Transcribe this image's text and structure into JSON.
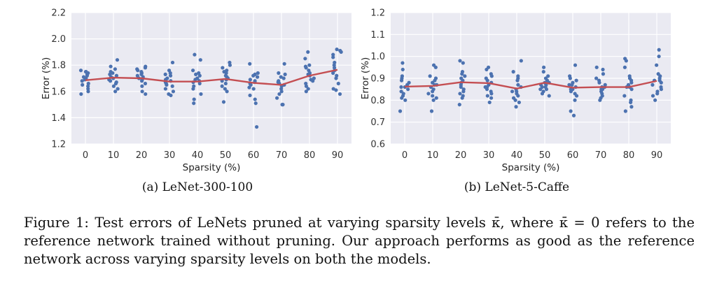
{
  "chart_data": [
    {
      "type": "scatter",
      "subcaption": "(a) LeNet-300-100",
      "xlabel": "Sparsity (%)",
      "ylabel": "Error (%)",
      "categories": [
        "0",
        "10",
        "20",
        "30",
        "40",
        "50",
        "60",
        "70",
        "80",
        "90"
      ],
      "ylim": [
        1.2,
        2.2
      ],
      "yticks": [
        "1.2",
        "1.4",
        "1.6",
        "1.8",
        "2.0",
        "2.2"
      ],
      "grid": true,
      "colors": {
        "points": "#4c72b0",
        "line": "#c44e52",
        "background": "#eaeaf2"
      },
      "points": [
        [
          1.76,
          1.75,
          1.74,
          1.73,
          1.72,
          1.7,
          1.68,
          1.66,
          1.64,
          1.62,
          1.6,
          1.58,
          1.75,
          1.71,
          1.69,
          1.65
        ],
        [
          1.84,
          1.79,
          1.77,
          1.75,
          1.73,
          1.71,
          1.7,
          1.68,
          1.66,
          1.64,
          1.62,
          1.6,
          1.74,
          1.69,
          1.72,
          1.67
        ],
        [
          1.79,
          1.78,
          1.77,
          1.75,
          1.73,
          1.72,
          1.7,
          1.68,
          1.66,
          1.64,
          1.6,
          1.58,
          1.74,
          1.69,
          1.76,
          1.71
        ],
        [
          1.82,
          1.76,
          1.74,
          1.72,
          1.7,
          1.68,
          1.66,
          1.64,
          1.62,
          1.6,
          1.58,
          1.57,
          1.73,
          1.67,
          1.69,
          1.65
        ],
        [
          1.88,
          1.84,
          1.76,
          1.74,
          1.72,
          1.7,
          1.68,
          1.66,
          1.64,
          1.62,
          1.58,
          1.54,
          1.51,
          1.73,
          1.69,
          1.67
        ],
        [
          1.82,
          1.8,
          1.78,
          1.76,
          1.74,
          1.72,
          1.7,
          1.68,
          1.66,
          1.64,
          1.62,
          1.6,
          1.52,
          1.75,
          1.71,
          1.69
        ],
        [
          1.81,
          1.74,
          1.73,
          1.71,
          1.69,
          1.67,
          1.65,
          1.63,
          1.62,
          1.57,
          1.54,
          1.51,
          1.33,
          1.72,
          1.68,
          1.66
        ],
        [
          1.81,
          1.74,
          1.73,
          1.7,
          1.68,
          1.66,
          1.64,
          1.62,
          1.6,
          1.58,
          1.55,
          1.5,
          1.5,
          1.71,
          1.67,
          1.65
        ],
        [
          1.9,
          1.85,
          1.8,
          1.78,
          1.76,
          1.74,
          1.72,
          1.7,
          1.68,
          1.66,
          1.64,
          1.62,
          1.6,
          1.73,
          1.69,
          1.79
        ],
        [
          1.92,
          1.91,
          1.9,
          1.88,
          1.86,
          1.82,
          1.78,
          1.76,
          1.74,
          1.72,
          1.7,
          1.66,
          1.62,
          1.61,
          1.58,
          1.8
        ]
      ],
      "mean": [
        1.685,
        1.705,
        1.7,
        1.675,
        1.675,
        1.695,
        1.665,
        1.65,
        1.72,
        1.765
      ]
    },
    {
      "type": "scatter",
      "subcaption": "(b) LeNet-5-Caffe",
      "xlabel": "Sparsity (%)",
      "ylabel": "Error (%)",
      "categories": [
        "0",
        "10",
        "20",
        "30",
        "40",
        "50",
        "60",
        "70",
        "80",
        "90"
      ],
      "ylim": [
        0.6,
        1.2
      ],
      "yticks": [
        "0.6",
        "0.7",
        "0.8",
        "0.9",
        "1.0",
        "1.1",
        "1.2"
      ],
      "grid": true,
      "colors": {
        "points": "#4c72b0",
        "line": "#c44e52",
        "background": "#eaeaf2"
      },
      "points": [
        [
          0.97,
          0.94,
          0.91,
          0.9,
          0.89,
          0.88,
          0.87,
          0.86,
          0.85,
          0.84,
          0.83,
          0.82,
          0.81,
          0.8,
          0.75,
          0.86
        ],
        [
          0.96,
          0.95,
          0.91,
          0.9,
          0.89,
          0.88,
          0.87,
          0.86,
          0.85,
          0.84,
          0.83,
          0.82,
          0.81,
          0.8,
          0.75,
          0.87
        ],
        [
          0.98,
          0.97,
          0.93,
          0.92,
          0.91,
          0.9,
          0.89,
          0.88,
          0.87,
          0.86,
          0.85,
          0.84,
          0.83,
          0.82,
          0.81,
          0.78
        ],
        [
          0.95,
          0.94,
          0.92,
          0.9,
          0.89,
          0.88,
          0.87,
          0.86,
          0.85,
          0.84,
          0.83,
          0.82,
          0.81,
          0.79,
          0.91,
          0.86
        ],
        [
          0.98,
          0.93,
          0.91,
          0.9,
          0.89,
          0.87,
          0.85,
          0.84,
          0.83,
          0.82,
          0.81,
          0.8,
          0.79,
          0.77,
          0.86,
          0.84
        ],
        [
          0.95,
          0.93,
          0.91,
          0.9,
          0.89,
          0.88,
          0.87,
          0.86,
          0.85,
          0.84,
          0.83,
          0.82,
          0.88,
          0.87,
          0.86,
          0.85
        ],
        [
          0.96,
          0.91,
          0.9,
          0.89,
          0.88,
          0.87,
          0.86,
          0.85,
          0.84,
          0.83,
          0.82,
          0.8,
          0.75,
          0.73,
          0.87,
          0.85
        ],
        [
          0.95,
          0.94,
          0.92,
          0.9,
          0.89,
          0.88,
          0.87,
          0.86,
          0.85,
          0.84,
          0.83,
          0.82,
          0.81,
          0.8,
          0.86,
          0.85
        ],
        [
          0.99,
          0.98,
          0.95,
          0.91,
          0.9,
          0.89,
          0.88,
          0.87,
          0.86,
          0.85,
          0.82,
          0.8,
          0.79,
          0.77,
          0.75,
          0.86
        ],
        [
          1.03,
          1.0,
          0.96,
          0.92,
          0.91,
          0.9,
          0.89,
          0.88,
          0.87,
          0.86,
          0.85,
          0.84,
          0.83,
          0.82,
          0.8,
          0.89
        ]
      ],
      "mean": [
        0.862,
        0.865,
        0.882,
        0.878,
        0.853,
        0.88,
        0.857,
        0.86,
        0.86,
        0.888
      ]
    }
  ],
  "caption": "Figure 1: Test errors of LeNets pruned at varying sparsity levels κ̄, where κ̄ = 0 refers to the reference network trained without pruning. Our approach performs as good as the reference network across varying sparsity levels on both the models."
}
